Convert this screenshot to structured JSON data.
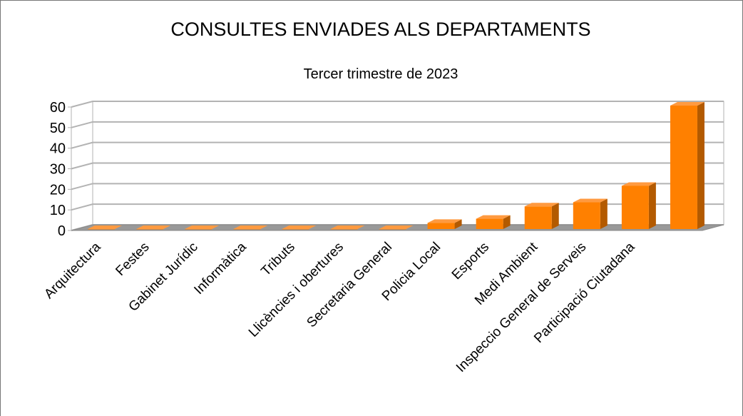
{
  "chart_data": {
    "type": "bar3d",
    "title": "CONSULTES ENVIADES ALS DEPARTAMENTS",
    "subtitle": "Tercer trimestre de 2023",
    "categories": [
      "Arquitectura",
      "Festes",
      "Gabinet Jurídic",
      "Informàtica",
      "Tributs",
      "Llicències i obertures",
      "Secretaria General",
      "Policia Local",
      "Esports",
      "Medi Ambient",
      "Inspeccio General de Serveis",
      "Participació Ciutadana",
      null
    ],
    "values": [
      0,
      0,
      0,
      0,
      0,
      0,
      0,
      3,
      5,
      11,
      13,
      21,
      60
    ],
    "color": "#ff8000",
    "ylim": [
      0,
      60
    ],
    "yticks": [
      0,
      10,
      20,
      30,
      40,
      50,
      60
    ],
    "grid": true
  }
}
